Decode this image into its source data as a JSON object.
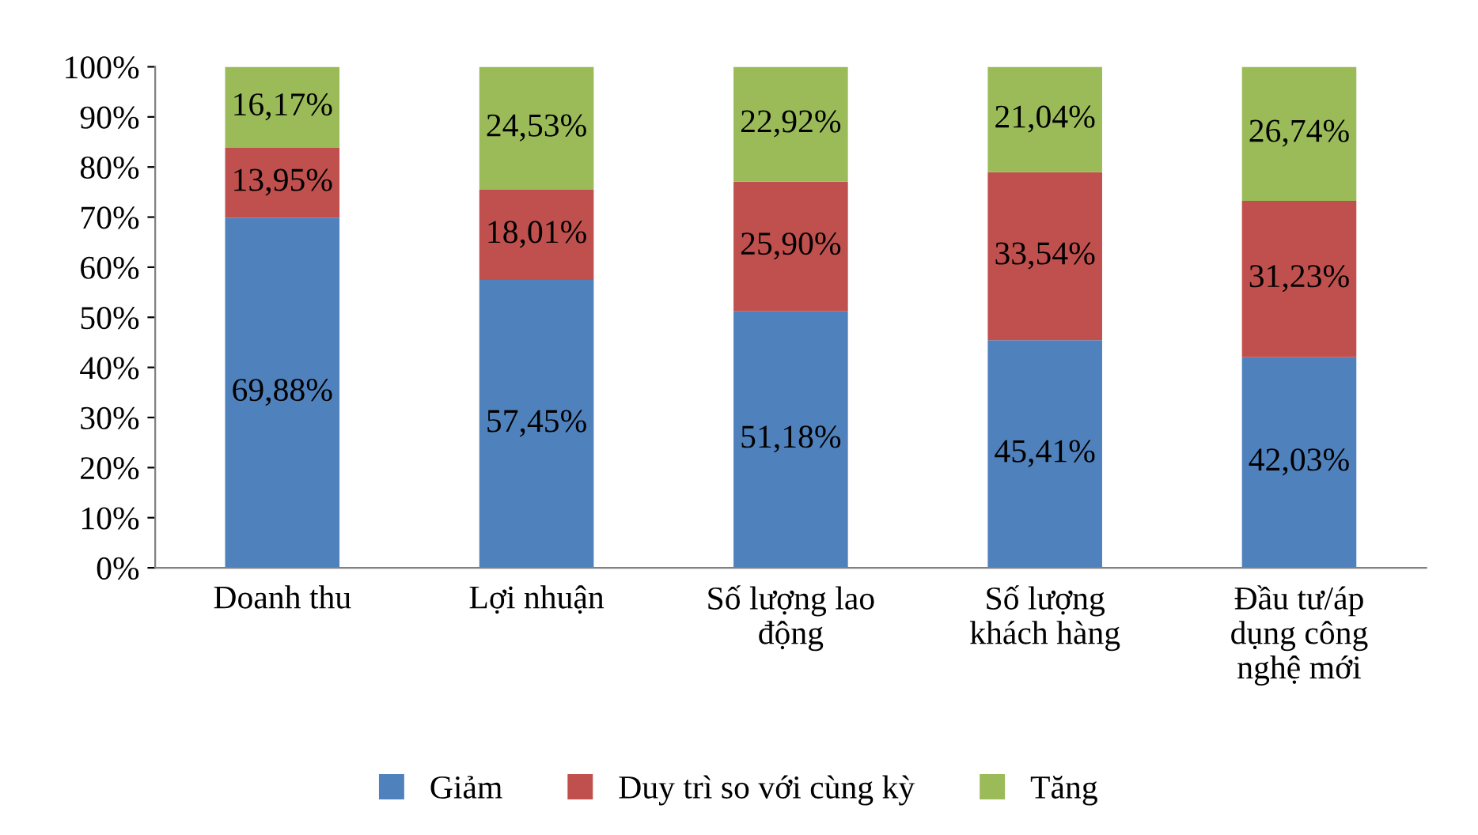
{
  "chart_data": {
    "type": "bar",
    "stacked": true,
    "categories": [
      "Doanh thu",
      "Lợi nhuận",
      "Số lượng lao\nđộng",
      "Số lượng\nkhách hàng",
      "Đầu tư/áp\ndụng công\nnghệ mới"
    ],
    "series": [
      {
        "name": "Giảm",
        "color": "#4f81bd",
        "values": [
          69.88,
          57.45,
          51.18,
          45.41,
          42.03
        ],
        "value_labels": [
          "69,88%",
          "57,45%",
          "51,18%",
          "45,41%",
          "42,03%"
        ]
      },
      {
        "name": "Duy trì so với cùng kỳ",
        "color": "#c0504d",
        "values": [
          13.95,
          18.01,
          25.9,
          33.54,
          31.23
        ],
        "value_labels": [
          "13,95%",
          "18,01%",
          "25,90%",
          "33,54%",
          "31,23%"
        ]
      },
      {
        "name": "Tăng",
        "color": "#9bbb59",
        "values": [
          16.17,
          24.53,
          22.92,
          21.04,
          26.74
        ],
        "value_labels": [
          "16,17%",
          "24,53%",
          "22,92%",
          "21,04%",
          "26,74%"
        ]
      }
    ],
    "ylim": [
      0,
      100
    ],
    "yticks": [
      {
        "value": 0,
        "label": "0%"
      },
      {
        "value": 10,
        "label": "10%"
      },
      {
        "value": 20,
        "label": "20%"
      },
      {
        "value": 30,
        "label": "30%"
      },
      {
        "value": 40,
        "label": "40%"
      },
      {
        "value": 50,
        "label": "50%"
      },
      {
        "value": 60,
        "label": "60%"
      },
      {
        "value": 70,
        "label": "70%"
      },
      {
        "value": 80,
        "label": "80%"
      },
      {
        "value": 90,
        "label": "90%"
      },
      {
        "value": 100,
        "label": "100%"
      }
    ],
    "grid": false,
    "legend": "bottom"
  }
}
